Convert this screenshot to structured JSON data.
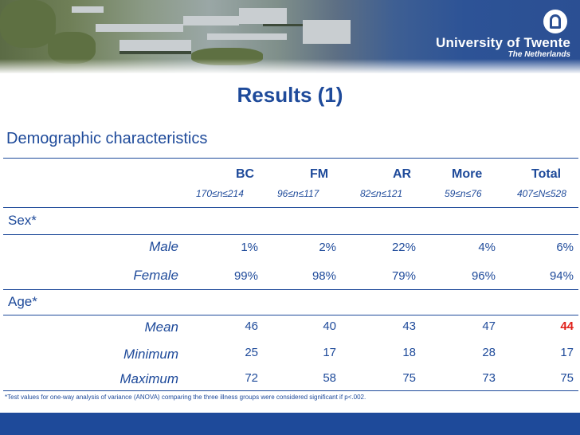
{
  "logo": {
    "name": "University of Twente",
    "subtitle": "The Netherlands",
    "icon": "ut-shield-icon"
  },
  "slide": {
    "title": "Results (1)",
    "subtitle": "Demographic characteristics"
  },
  "table": {
    "columns": [
      {
        "name": "BC",
        "range": "170≤n≤214"
      },
      {
        "name": "FM",
        "range": "96≤n≤117"
      },
      {
        "name": "AR",
        "range": "82≤n≤121"
      },
      {
        "name": "More",
        "range": "59≤n≤76"
      },
      {
        "name": "Total",
        "range": "407≤N≤528"
      }
    ],
    "sex": {
      "label": "Sex*",
      "male": {
        "label": "Male",
        "values": [
          "1%",
          "2%",
          "22%",
          "4%",
          "6%"
        ]
      },
      "female": {
        "label": "Female",
        "values": [
          "99%",
          "98%",
          "79%",
          "96%",
          "94%"
        ]
      }
    },
    "age": {
      "label": "Age*",
      "mean": {
        "label": "Mean",
        "values": [
          "46",
          "40",
          "43",
          "47",
          "44"
        ]
      },
      "minimum": {
        "label": "Minimum",
        "values": [
          "25",
          "17",
          "18",
          "28",
          "17"
        ]
      },
      "maximum": {
        "label": "Maximum",
        "values": [
          "72",
          "58",
          "75",
          "73",
          "75"
        ]
      }
    },
    "highlight_color": "#e0201a"
  },
  "footnote": "*Test values for one-way analysis of variance (ANOVA) comparing the three illness groups were considered significant if p<.002."
}
